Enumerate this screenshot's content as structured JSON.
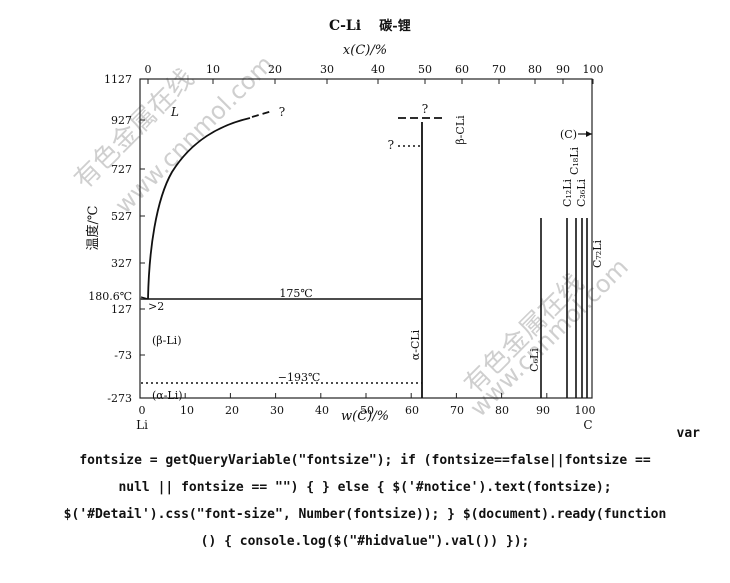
{
  "figure": {
    "title": "C-Li",
    "title_cn": "碳-锂",
    "top_axis_label": "x(C)/%",
    "bottom_axis_label": "w(C)/%",
    "y_axis_label": "温度/℃",
    "top_ticks": [
      "0",
      "10",
      "20",
      "30",
      "40",
      "50",
      "60",
      "70",
      "80",
      "90",
      "100"
    ],
    "bottom_ticks": [
      "0",
      "10",
      "20",
      "30",
      "40",
      "50",
      "60",
      "70",
      "80",
      "90",
      "100"
    ],
    "y_ticks": [
      "1127",
      "927",
      "727",
      "527",
      "327",
      "180.6℃",
      "127",
      "-73",
      "-273"
    ],
    "corner_left": "Li",
    "corner_right": "C"
  },
  "labels": {
    "liquid": "L",
    "question1": "?",
    "question2": "?",
    "question3": "?",
    "less_than_2": ">2",
    "temp_175": "175℃",
    "temp_minus193": "−193℃",
    "beta_li": "(β-Li)",
    "alpha_li": "(α-Li)",
    "alpha_cli": "α-CLi",
    "beta_cli": "β-CLi",
    "c_phase": "(C)",
    "c6li": "C₆Li",
    "c12li": "C₁₂Li",
    "c18li": "C₁₈Li",
    "c36li": "C₃₆Li",
    "c72li": "C₇₂Li"
  },
  "watermark": {
    "line1": "有色金属在线",
    "line2": "www.cnnmol.com"
  },
  "code_lines": [
    "var",
    "fontsize = getQueryVariable(\"fontsize\"); if (fontsize==false||fontsize ==",
    "null || fontsize == \"\") { } else { $('#notice').text(fontsize);",
    "$('#Detail').css(\"font-size\", Number(fontsize)); } $(document).ready(function",
    "() { console.log($(\"#hidvalue\").val()) });"
  ]
}
